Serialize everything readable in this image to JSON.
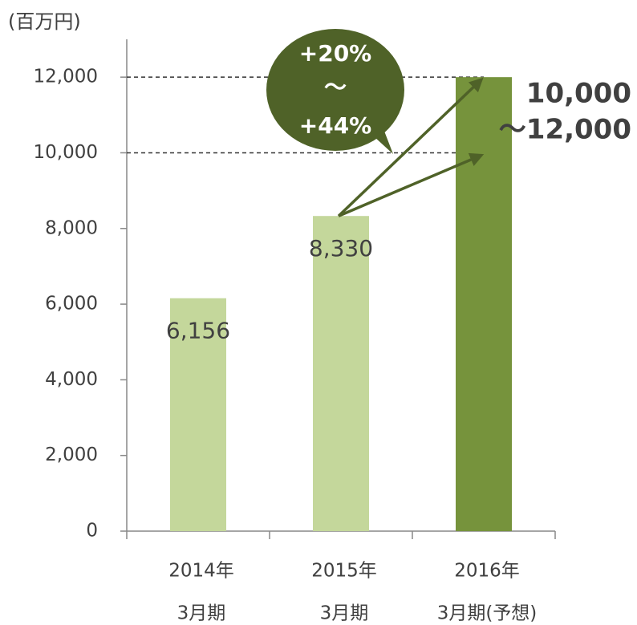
{
  "chart_data": {
    "type": "bar",
    "unit_label": "(百万円)",
    "categories": [
      [
        "2014年",
        "3月期"
      ],
      [
        "2015年",
        "3月期"
      ],
      [
        "2016年",
        "3月期(予想)"
      ]
    ],
    "values": [
      6156,
      8330,
      12000
    ],
    "value_labels": [
      "6,156",
      "8,330",
      null
    ],
    "colors": [
      "#c4d79b",
      "#c4d79b",
      "#76933c"
    ],
    "ylim": [
      0,
      13000
    ],
    "yticks": [
      0,
      {
        "value": 2000,
        "label": "2,000"
      },
      {
        "value": 4000,
        "label": "4,000"
      },
      {
        "value": 6000,
        "label": "6,000"
      },
      {
        "value": 8000,
        "label": "8,000"
      },
      {
        "value": 10000,
        "label": "10,000"
      },
      {
        "value": 12000,
        "label": "12,000"
      }
    ],
    "reference_lines": [
      10000,
      12000
    ],
    "forecast_range_labels": [
      "10,000",
      "～12,000"
    ],
    "growth_bubble": {
      "lines": [
        "+20%",
        "～",
        "+44%"
      ],
      "color": "#4f6228"
    },
    "grid": false
  }
}
